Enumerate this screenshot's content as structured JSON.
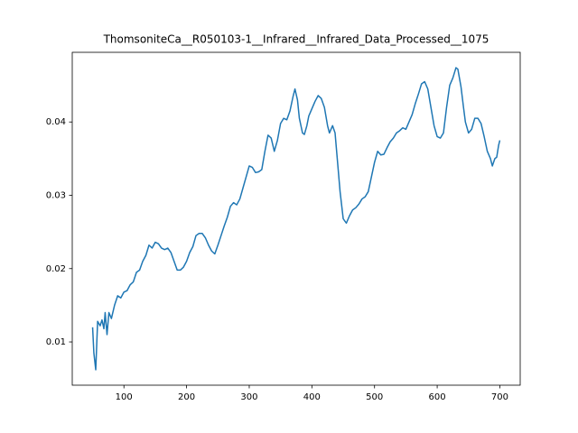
{
  "chart_data": {
    "type": "line",
    "title": "ThomsoniteCa__R050103-1__Infrared__Infrared_Data_Processed__1075",
    "x": [
      50,
      52,
      55,
      58,
      62,
      65,
      68,
      70,
      73,
      76,
      80,
      85,
      90,
      95,
      100,
      105,
      110,
      115,
      120,
      125,
      130,
      135,
      140,
      145,
      150,
      155,
      160,
      165,
      170,
      175,
      180,
      185,
      190,
      195,
      200,
      205,
      210,
      215,
      220,
      225,
      230,
      235,
      240,
      245,
      250,
      255,
      260,
      265,
      270,
      275,
      280,
      285,
      290,
      295,
      300,
      305,
      310,
      315,
      320,
      325,
      330,
      335,
      340,
      345,
      350,
      355,
      360,
      365,
      370,
      373,
      377,
      380,
      385,
      388,
      392,
      395,
      400,
      405,
      410,
      415,
      420,
      425,
      428,
      433,
      437,
      440,
      445,
      450,
      455,
      460,
      465,
      470,
      475,
      480,
      485,
      490,
      495,
      500,
      505,
      510,
      515,
      520,
      525,
      530,
      535,
      540,
      545,
      550,
      555,
      560,
      565,
      570,
      575,
      580,
      585,
      590,
      595,
      600,
      605,
      610,
      615,
      620,
      625,
      630,
      633,
      638,
      642,
      645,
      650,
      655,
      660,
      665,
      670,
      675,
      680,
      685,
      688,
      692,
      695,
      698,
      700
    ],
    "series": [
      {
        "color": "#1f77b4",
        "values": [
          0.012,
          0.0085,
          0.0062,
          0.0128,
          0.0122,
          0.013,
          0.0118,
          0.014,
          0.011,
          0.014,
          0.0132,
          0.015,
          0.0163,
          0.016,
          0.0168,
          0.017,
          0.0178,
          0.0182,
          0.0195,
          0.0198,
          0.021,
          0.0218,
          0.0232,
          0.0228,
          0.0236,
          0.0234,
          0.0228,
          0.0226,
          0.0228,
          0.0222,
          0.021,
          0.0198,
          0.0198,
          0.0202,
          0.021,
          0.0222,
          0.023,
          0.0245,
          0.0248,
          0.0248,
          0.0242,
          0.0232,
          0.0224,
          0.022,
          0.0232,
          0.0245,
          0.0258,
          0.027,
          0.0285,
          0.029,
          0.0287,
          0.0295,
          0.031,
          0.0325,
          0.034,
          0.0338,
          0.0331,
          0.0332,
          0.0335,
          0.036,
          0.0382,
          0.0378,
          0.036,
          0.0375,
          0.0398,
          0.0405,
          0.0403,
          0.0415,
          0.0435,
          0.0445,
          0.043,
          0.0405,
          0.0385,
          0.0383,
          0.0395,
          0.0408,
          0.0418,
          0.0428,
          0.0436,
          0.0432,
          0.042,
          0.0395,
          0.0385,
          0.0395,
          0.0385,
          0.0355,
          0.0305,
          0.0268,
          0.0262,
          0.0272,
          0.028,
          0.0283,
          0.0288,
          0.0295,
          0.0298,
          0.0305,
          0.0325,
          0.0345,
          0.036,
          0.0355,
          0.0356,
          0.0365,
          0.0373,
          0.0378,
          0.0385,
          0.0388,
          0.0392,
          0.039,
          0.04,
          0.041,
          0.0425,
          0.0438,
          0.0452,
          0.0455,
          0.0445,
          0.042,
          0.0395,
          0.038,
          0.0378,
          0.0385,
          0.042,
          0.045,
          0.046,
          0.0474,
          0.0472,
          0.0448,
          0.042,
          0.04,
          0.0385,
          0.039,
          0.0405,
          0.0405,
          0.0398,
          0.038,
          0.036,
          0.035,
          0.034,
          0.035,
          0.0352,
          0.0368,
          0.0375
        ]
      }
    ],
    "xlim": [
      17.5,
      732.5
    ],
    "ylim": [
      0.0041,
      0.0495
    ],
    "xticks": [
      100,
      200,
      300,
      400,
      500,
      600,
      700
    ],
    "yticks": [
      0.01,
      0.02,
      0.03,
      0.04
    ]
  }
}
